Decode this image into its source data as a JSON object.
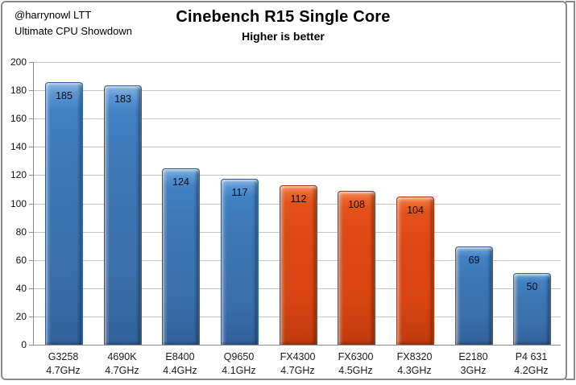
{
  "annotation": {
    "line1": "@harrynowl LTT",
    "line2": "Ultimate CPU Showdown"
  },
  "chart_data": {
    "type": "bar",
    "title": "Cinebench R15 Single Core",
    "subtitle": "Higher is better",
    "categories": [
      {
        "label": "G3258",
        "sublabel": "4.7GHz"
      },
      {
        "label": "4690K",
        "sublabel": "4.7GHz"
      },
      {
        "label": "E8400",
        "sublabel": "4.4GHz"
      },
      {
        "label": "Q9650",
        "sublabel": "4.1GHz"
      },
      {
        "label": "FX4300",
        "sublabel": "4.7GHz"
      },
      {
        "label": "FX6300",
        "sublabel": "4.5GHz"
      },
      {
        "label": "FX8320",
        "sublabel": "4.3GHz"
      },
      {
        "label": "E2180",
        "sublabel": "3GHz"
      },
      {
        "label": "P4 631",
        "sublabel": "4.2GHz"
      }
    ],
    "values": [
      185,
      183,
      124,
      117,
      112,
      108,
      104,
      69,
      50
    ],
    "bar_colors": [
      "blue",
      "blue",
      "blue",
      "blue",
      "orange",
      "orange",
      "orange",
      "blue",
      "blue"
    ],
    "palette": {
      "blue": "#3B76BC",
      "orange": "#DB4814"
    },
    "xlabel": "",
    "ylabel": "",
    "ylim": [
      0,
      200
    ],
    "ytick_step": 20,
    "grid": true,
    "legend": "none",
    "data_labels": "inside-top"
  }
}
